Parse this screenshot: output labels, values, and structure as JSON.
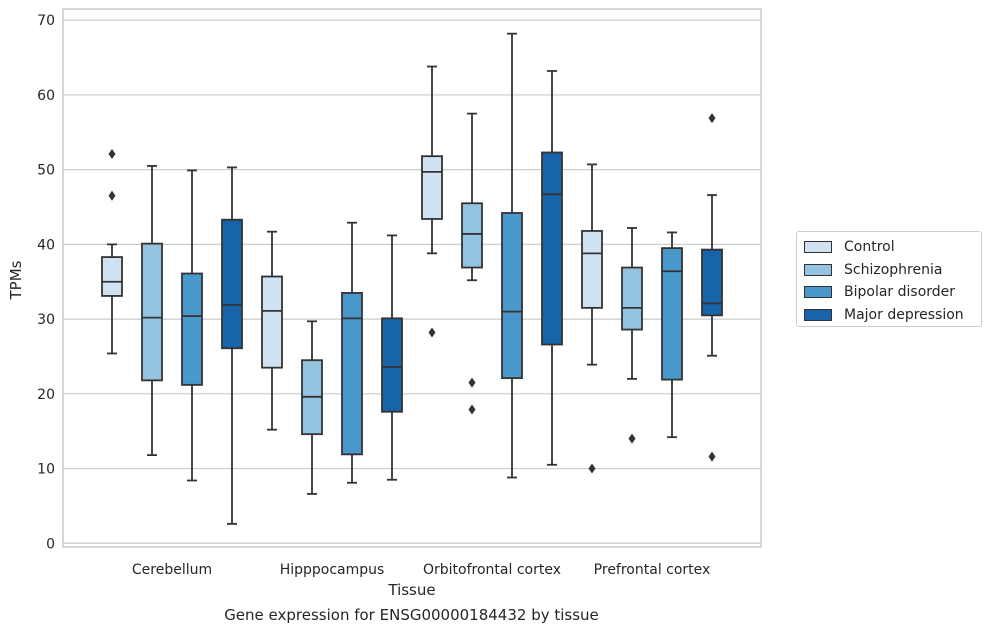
{
  "chart_data": {
    "type": "boxplot",
    "title": "Gene expression for ENSG00000184432 by tissue",
    "xlabel": "Tissue",
    "ylabel": "TPMs",
    "ylim": [
      -0.5,
      71.5
    ],
    "yticks": [
      0,
      10,
      20,
      30,
      40,
      50,
      60,
      70
    ],
    "grid": true,
    "legend_position": "right",
    "categories": [
      "Cerebellum",
      "Hipppocampus",
      "Orbitofrontal cortex",
      "Prefrontal cortex"
    ],
    "series": [
      {
        "name": "Control",
        "color": "#d0e1f2",
        "boxes": [
          {
            "whisker_low": 25.4,
            "q1": 33.1,
            "median": 35.0,
            "q3": 38.3,
            "whisker_high": 40.0,
            "outliers": [
              52.1,
              46.5
            ]
          },
          {
            "whisker_low": 15.2,
            "q1": 23.5,
            "median": 31.1,
            "q3": 35.7,
            "whisker_high": 41.7,
            "outliers": []
          },
          {
            "whisker_low": 38.8,
            "q1": 43.4,
            "median": 49.7,
            "q3": 51.8,
            "whisker_high": 63.8,
            "outliers": [
              28.2
            ]
          },
          {
            "whisker_low": 23.9,
            "q1": 31.5,
            "median": 38.8,
            "q3": 41.8,
            "whisker_high": 50.7,
            "outliers": [
              10.0
            ]
          }
        ]
      },
      {
        "name": "Schizophrenia",
        "color": "#94c4df",
        "boxes": [
          {
            "whisker_low": 11.8,
            "q1": 21.8,
            "median": 30.2,
            "q3": 40.1,
            "whisker_high": 50.5,
            "outliers": []
          },
          {
            "whisker_low": 6.6,
            "q1": 14.6,
            "median": 19.6,
            "q3": 24.5,
            "whisker_high": 29.7,
            "outliers": []
          },
          {
            "whisker_low": 35.2,
            "q1": 36.9,
            "median": 41.4,
            "q3": 45.5,
            "whisker_high": 57.5,
            "outliers": [
              21.5,
              17.9
            ]
          },
          {
            "whisker_low": 22.0,
            "q1": 28.6,
            "median": 31.5,
            "q3": 36.9,
            "whisker_high": 42.2,
            "outliers": [
              14.0
            ]
          }
        ]
      },
      {
        "name": "Bipolar disorder",
        "color": "#4a98c9",
        "boxes": [
          {
            "whisker_low": 8.4,
            "q1": 21.2,
            "median": 30.4,
            "q3": 36.1,
            "whisker_high": 49.9,
            "outliers": []
          },
          {
            "whisker_low": 8.1,
            "q1": 11.9,
            "median": 30.1,
            "q3": 33.5,
            "whisker_high": 42.9,
            "outliers": []
          },
          {
            "whisker_low": 8.8,
            "q1": 22.1,
            "median": 31.0,
            "q3": 44.2,
            "whisker_high": 68.2,
            "outliers": []
          },
          {
            "whisker_low": 14.2,
            "q1": 21.9,
            "median": 36.4,
            "q3": 39.5,
            "whisker_high": 41.6,
            "outliers": []
          }
        ]
      },
      {
        "name": "Major depression",
        "color": "#1764ab",
        "boxes": [
          {
            "whisker_low": 2.6,
            "q1": 26.1,
            "median": 31.9,
            "q3": 43.3,
            "whisker_high": 50.3,
            "outliers": []
          },
          {
            "whisker_low": 8.5,
            "q1": 17.6,
            "median": 23.6,
            "q3": 30.1,
            "whisker_high": 41.2,
            "outliers": []
          },
          {
            "whisker_low": 10.5,
            "q1": 26.6,
            "median": 46.7,
            "q3": 52.3,
            "whisker_high": 63.2,
            "outliers": []
          },
          {
            "whisker_low": 25.1,
            "q1": 30.5,
            "median": 32.1,
            "q3": 39.3,
            "whisker_high": 46.6,
            "outliers": [
              56.9,
              11.6
            ]
          }
        ]
      }
    ]
  }
}
